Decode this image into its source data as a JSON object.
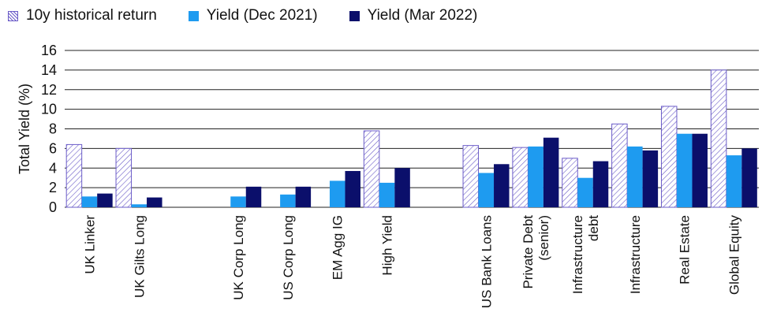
{
  "chart_data": {
    "type": "bar",
    "ylabel": "Total Yield (%)",
    "ylim": [
      0,
      16
    ],
    "yticks": [
      0,
      2,
      4,
      6,
      8,
      10,
      12,
      14,
      16
    ],
    "grid": true,
    "legend_position": "top-left",
    "categories": [
      "UK Linker",
      "UK Gilts Long",
      "",
      "UK Corp Long",
      "US Corp Long",
      "EM Agg IG",
      "High Yield",
      "",
      "US Bank Loans",
      "Private Debt\n(senior)",
      "Infrastructure\ndebt",
      "Infrastructure",
      "Real Estate",
      "Global Equity"
    ],
    "series": [
      {
        "name": "10y historical return",
        "color": "#6b5cc8",
        "pattern": "hatched",
        "values": [
          6.4,
          6.0,
          null,
          null,
          null,
          null,
          7.8,
          null,
          6.3,
          6.1,
          5.0,
          8.5,
          10.3,
          14.0
        ]
      },
      {
        "name": "Yield (Dec 2021)",
        "color": "#1e9bf0",
        "values": [
          1.1,
          0.3,
          null,
          1.1,
          1.3,
          2.7,
          2.5,
          null,
          3.5,
          6.2,
          3.0,
          6.2,
          7.5,
          5.3
        ]
      },
      {
        "name": "Yield (Mar 2022)",
        "color": "#0b0f6b",
        "values": [
          1.4,
          1.0,
          null,
          2.1,
          2.1,
          3.7,
          4.0,
          null,
          4.4,
          7.1,
          4.7,
          5.8,
          7.5,
          6.0
        ]
      }
    ]
  }
}
